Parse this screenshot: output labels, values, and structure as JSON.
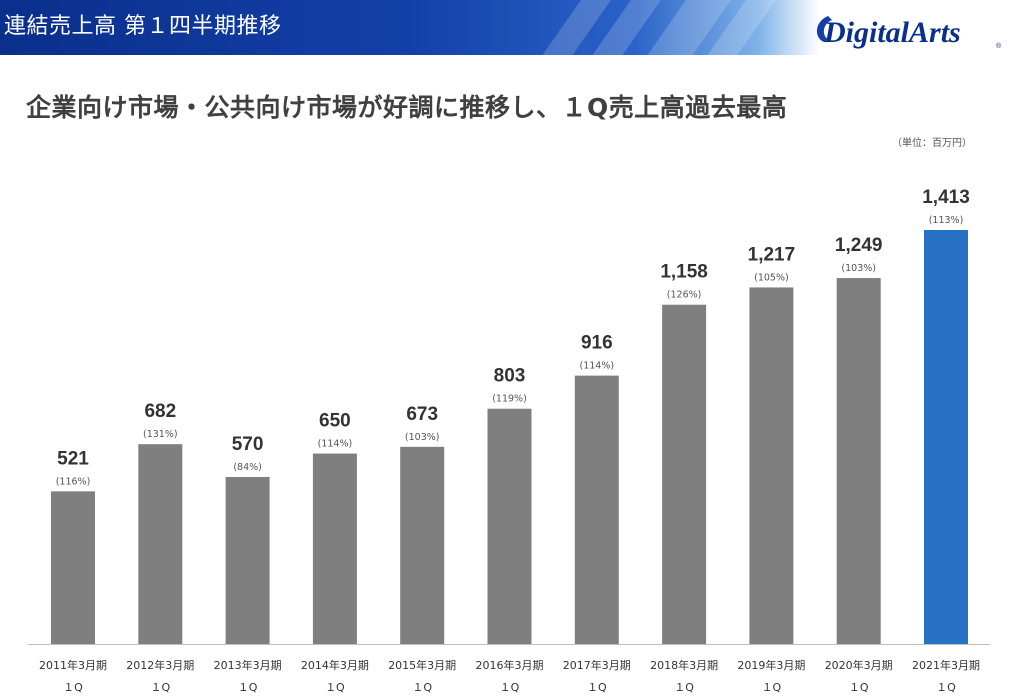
{
  "header": {
    "title": "連結売上高 第１四半期推移",
    "logo_text": "DigitalArts"
  },
  "subtitle": "企業向け市場・公共向け市場が好調に推移し、１Q売上高過去最高",
  "unit_label": "（単位：百万円）",
  "colors": {
    "bar_default": "#7f7f7f",
    "bar_highlight": "#2671c6",
    "header_blue": "#0a2f8c"
  },
  "chart_data": {
    "type": "bar",
    "categories": [
      "2011年3月期",
      "2012年3月期",
      "2013年3月期",
      "2014年3月期",
      "2015年3月期",
      "2016年3月期",
      "2017年3月期",
      "2018年3月期",
      "2019年3月期",
      "2020年3月期",
      "2021年3月期"
    ],
    "category_sublabel": "１Q",
    "values": [
      521,
      682,
      570,
      650,
      673,
      803,
      916,
      1158,
      1217,
      1249,
      1413
    ],
    "value_labels": [
      "521",
      "682",
      "570",
      "650",
      "673",
      "803",
      "916",
      "1,158",
      "1,217",
      "1,249",
      "1,413"
    ],
    "yoy_labels": [
      "(116%)",
      "(131%)",
      "(84%)",
      "(114%)",
      "(103%)",
      "(119%)",
      "(114%)",
      "(126%)",
      "(105%)",
      "(103%)",
      "(113%)"
    ],
    "highlight_index": 10,
    "ylim": [
      0,
      1413
    ],
    "title": "",
    "xlabel": "",
    "ylabel": "",
    "grid": false,
    "legend": "none"
  }
}
